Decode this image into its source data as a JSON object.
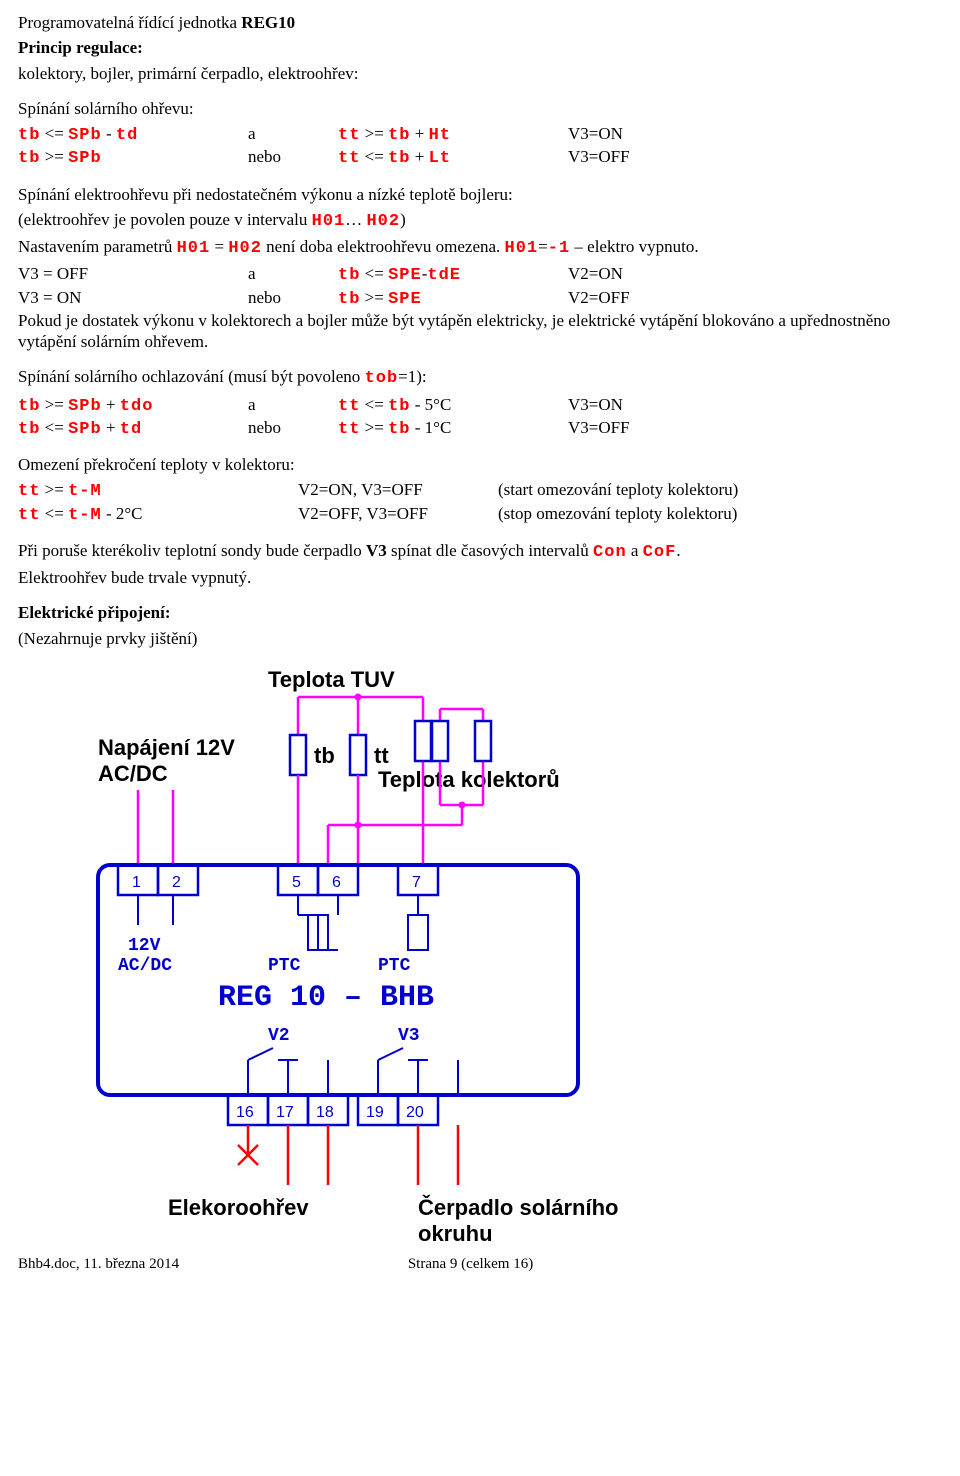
{
  "header": "Programovatelná řídící jednotka REG10",
  "principle": {
    "title": "Princip regulace:",
    "line": "kolektory, bojler, primární čerpadlo, elektroohřev:"
  },
  "solar_heating": {
    "title": "Spínání solárního ohřevu:",
    "rows": [
      {
        "c1a": "tb",
        "c1m": " <= ",
        "c1b": "SPb",
        "c1m2": " - ",
        "c1c": "td",
        "c2": "a",
        "c3a": "tt",
        "c3m": " >= ",
        "c3b": "tb",
        "c3m2": " + ",
        "c3c": "Ht",
        "c4": "V3=ON"
      },
      {
        "c1a": "tb",
        "c1m": " >= ",
        "c1b": "SPb",
        "c1m2": "",
        "c1c": "",
        "c2": "nebo",
        "c3a": "tt",
        "c3m": " <= ",
        "c3b": "tb",
        "c3m2": " + ",
        "c3c": "Lt",
        "c4": "V3=OFF"
      }
    ]
  },
  "electro": {
    "title": "Spínání elektroohřevu při nedostatečném výkonu a nízké teplotě bojleru:",
    "p1_pre": "(elektroohřev je povolen pouze v intervalu ",
    "p1_h01": "H01",
    "p1_dots": "… ",
    "p1_h02": "H02",
    "p1_post": ")",
    "p2_pre": "Nastavením parametrů ",
    "p2_h01": "H01",
    "p2_eq": " = ",
    "p2_h02": "H02",
    "p2_mid": " není doba elektroohřevu omezena. ",
    "p2_h01b": "H01",
    "p2_eq2": "=",
    "p2_m1": "-1",
    "p2_end": " – elektro vypnuto.",
    "rows": [
      {
        "c1": "V3 = OFF",
        "c2": "a",
        "c3a": "tb",
        "c3m": " <= ",
        "c3b": "SPE",
        "c3m2": "-",
        "c3c": "tdE",
        "c4": "V2=ON"
      },
      {
        "c1": "V3 = ON",
        "c2": "nebo",
        "c3a": "tb",
        "c3m": " >= ",
        "c3b": "SPE",
        "c3m2": "",
        "c3c": "",
        "c4": "V2=OFF"
      }
    ],
    "after": "Pokud je dostatek výkonu v kolektorech a bojler může být vytápěn elektricky, je elektrické vytápění blokováno a upřednostněno vytápění solárním ohřevem."
  },
  "cooling": {
    "title_pre": "Spínání solárního ochlazování (musí být povoleno ",
    "title_tob": "tob",
    "title_post": "=1):",
    "rows": [
      {
        "c1a": "tb",
        "c1m": " >= ",
        "c1b": "SPb",
        "c1m2": " + ",
        "c1c": "tdo",
        "c2": "a",
        "c3a": "tt",
        "c3m": " <= ",
        "c3b": "tb",
        "c3m2": " - 5°C",
        "c4": "V3=ON"
      },
      {
        "c1a": "tb",
        "c1m": " <= ",
        "c1b": "SPb",
        "c1m2": " + ",
        "c1c": "td",
        "c2": "nebo",
        "c3a": "tt",
        "c3m": " >= ",
        "c3b": "tb",
        "c3m2": " - 1°C",
        "c4": "V3=OFF"
      }
    ]
  },
  "overlimit": {
    "title": "Omezení překročení teploty v kolektoru:",
    "rows": [
      {
        "c1a": "tt",
        "c1m": " >= ",
        "c1b": "t-M",
        "c1m2": "",
        "c2": "V2=ON, V3=OFF",
        "c3": "(start omezování teploty kolektoru)"
      },
      {
        "c1a": "tt",
        "c1m": " <= ",
        "c1b": "t-M",
        "c1m2": " - 2°C",
        "c2": "V2=OFF, V3=OFF",
        "c3": "(stop omezování teploty kolektoru)"
      }
    ]
  },
  "fault": {
    "pre": "Při poruše kterékoliv teplotní sondy bude čerpadlo ",
    "v3": "V3",
    "mid": " spínat dle časových intervalů ",
    "con": "Con",
    "a": " a ",
    "cof": "CoF",
    "dot": ".",
    "line2": "Elektroohřev bude trvale vypnutý."
  },
  "connect": {
    "title": "Elektrické připojení:",
    "sub": "(Nezahrnuje prvky jištění)"
  },
  "diagram": {
    "tuv": "Teplota TUV",
    "nap1": "Napájení 12V",
    "nap2": "AC/DC",
    "tb": "tb",
    "tt": "tt",
    "tkol": "Teplota kolektorů",
    "terminals_top": [
      "1",
      "2",
      "5",
      "6",
      "7"
    ],
    "acdc1": "12V",
    "acdc2": "AC/DC",
    "ptc1": "PTC",
    "ptc2": "PTC",
    "title": "REG 10 – BHB",
    "v2": "V2",
    "v3": "V3",
    "terminals_bot": [
      "16",
      "17",
      "18",
      "19",
      "20"
    ],
    "eloh": "Elekoroohřev",
    "cerp1": "Čerpadlo solárního",
    "cerp2": "okruhu",
    "colors": {
      "blue": "#0000cc",
      "magenta": "#ff00ff",
      "red": "#ff0000"
    }
  },
  "footer": {
    "left": "Bhb4.doc, 11. března 2014",
    "center": "Strana 9 (celkem 16)"
  }
}
